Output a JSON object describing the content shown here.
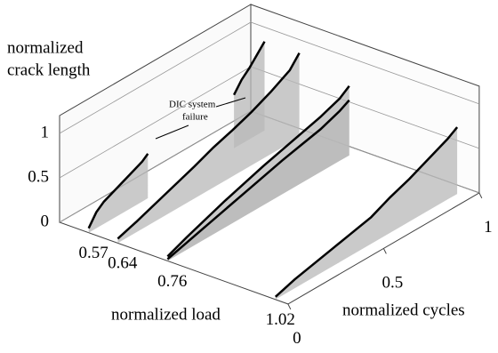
{
  "chart_data": {
    "type": "line3d",
    "ylabel": [
      "normalized",
      "crack length"
    ],
    "xlabel": "normalized cycles",
    "load_label": "normalized load",
    "annotation": [
      "DIC system",
      "failure"
    ],
    "xlim": [
      0,
      1
    ],
    "xticks": [
      0,
      0.5,
      1
    ],
    "ylim": [
      0,
      1.2
    ],
    "yticks": [
      0,
      0.5,
      1
    ],
    "load_lim": [
      0.5,
      1.05
    ],
    "load_ticks": [
      0.57,
      0.64,
      0.76,
      1.02
    ],
    "line_color": "#000000",
    "fill_color": "#b8b8b8",
    "grid": true,
    "curves": [
      [
        {
          "x": [
            0,
            0.04,
            0.08,
            0.12,
            0.16,
            0.2,
            0.24,
            0.28,
            0.31,
            0.5,
            0.76,
            0.8,
            0.84,
            0.88,
            0.92
          ],
          "values": [
            0.05,
            0.18,
            0.25,
            0.29,
            0.33,
            0.37,
            0.41,
            0.45,
            0.5,
            null,
            0.6,
            0.72,
            0.8,
            0.9,
            1.0
          ]
        }
      ],
      [
        {
          "x": [
            0,
            0.1,
            0.2,
            0.3,
            0.4,
            0.5,
            0.6,
            0.7,
            0.8,
            0.9,
            0.95
          ],
          "values": [
            0.05,
            0.12,
            0.2,
            0.28,
            0.36,
            0.45,
            0.52,
            0.6,
            0.7,
            0.82,
            0.95
          ]
        }
      ],
      [
        {
          "x": [
            0,
            0.1,
            0.2,
            0.3,
            0.4,
            0.5,
            0.6,
            0.7,
            0.8,
            0.9,
            0.95
          ],
          "values": [
            0.05,
            0.14,
            0.22,
            0.3,
            0.37,
            0.44,
            0.5,
            0.56,
            0.62,
            0.7,
            0.78
          ]
        },
        {
          "x": [
            0,
            0.1,
            0.2,
            0.3,
            0.4,
            0.5,
            0.6,
            0.7,
            0.8,
            0.9,
            0.95
          ],
          "values": [
            0.02,
            0.08,
            0.14,
            0.2,
            0.26,
            0.32,
            0.38,
            0.43,
            0.48,
            0.56,
            0.62
          ]
        }
      ],
      [
        {
          "x": [
            0,
            0.1,
            0.2,
            0.3,
            0.4,
            0.5,
            0.6,
            0.7,
            0.8,
            0.9,
            0.95
          ],
          "values": [
            0.03,
            0.1,
            0.15,
            0.2,
            0.25,
            0.3,
            0.4,
            0.48,
            0.58,
            0.68,
            0.75
          ]
        }
      ]
    ]
  }
}
